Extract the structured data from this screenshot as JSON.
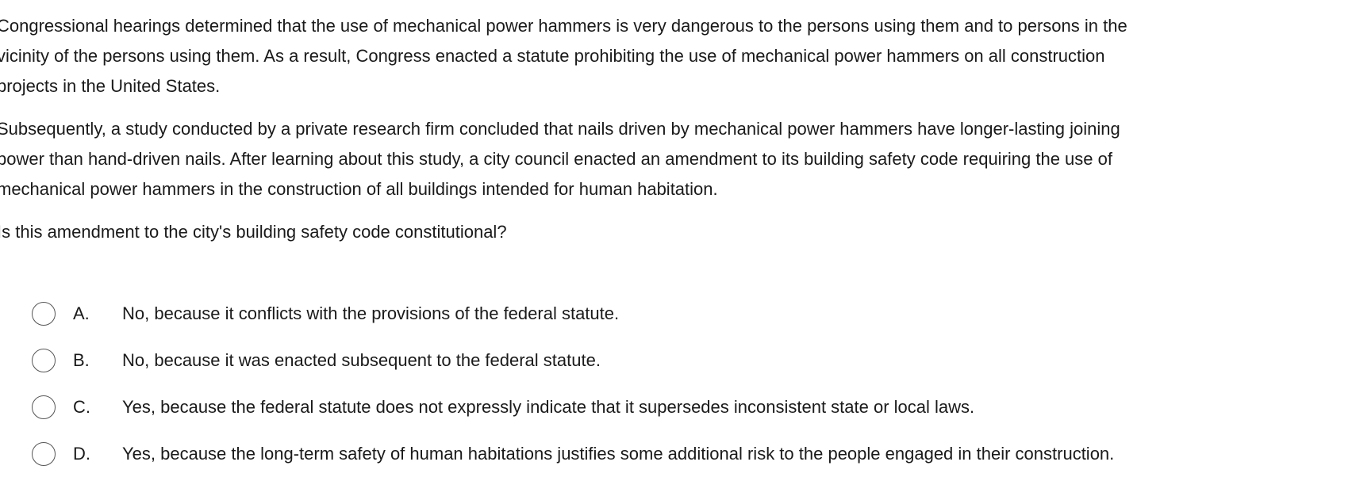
{
  "passage": {
    "paragraph1": [
      "Congressional hearings determined that the use of mechanical power hammers is very dangerous to the persons using them and to persons in the",
      "vicinity of the persons using them.  As a result, Congress enacted a statute prohibiting the use of mechanical power hammers on all construction",
      "projects in the United States."
    ],
    "paragraph2": [
      "Subsequently, a study conducted by a private research firm concluded that nails driven by mechanical power hammers have longer-lasting joining",
      "power than hand-driven nails.  After learning about this study, a city council enacted an amendment to its building safety code requiring the use of",
      "mechanical power hammers in the construction of all buildings intended for human habitation."
    ]
  },
  "question": "Is this amendment to the city's building safety code constitutional?",
  "options": [
    {
      "letter": "A.",
      "text": "No, because it conflicts with the provisions of the federal statute."
    },
    {
      "letter": "B.",
      "text": "No, because it was enacted subsequent to the federal statute."
    },
    {
      "letter": "C.",
      "text": "Yes, because the federal statute does not expressly indicate that it supersedes inconsistent state or local laws."
    },
    {
      "letter": "D.",
      "text": "Yes, because the long-term safety of human habitations justifies some additional risk to the people engaged in their construction."
    }
  ]
}
